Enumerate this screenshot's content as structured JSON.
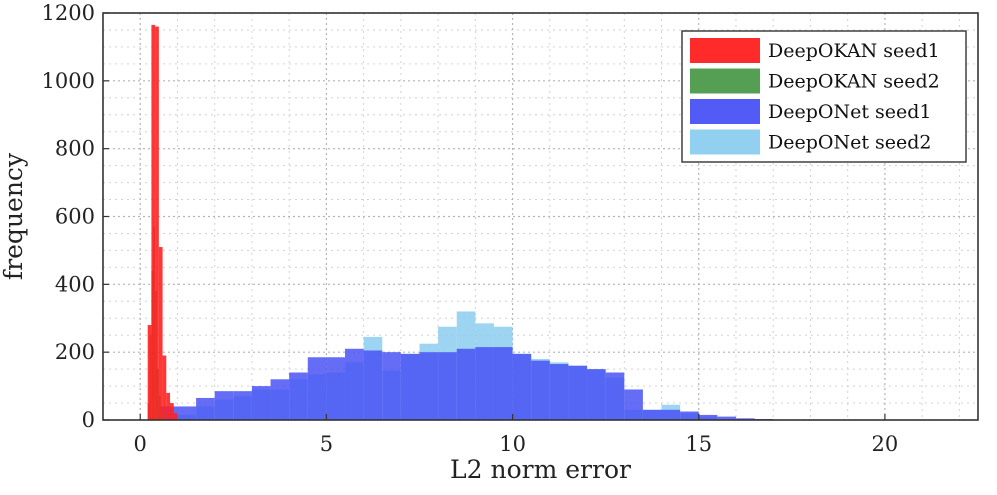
{
  "chart_data": {
    "type": "histogram",
    "xlabel": "L2 norm error",
    "ylabel": "frequency",
    "xlim": [
      -1,
      22.5
    ],
    "ylim": [
      0,
      1200
    ],
    "xticks": [
      0,
      5,
      10,
      15,
      20
    ],
    "yticks": [
      0,
      200,
      400,
      600,
      800,
      1000,
      1200
    ],
    "grid": true,
    "minor_grid": true,
    "legend_position": "top-right",
    "series": [
      {
        "name": "DeepOKAN seed1",
        "color": "#ff2020",
        "bin_edges": [
          0.2,
          0.3,
          0.4,
          0.5,
          0.6,
          0.7,
          0.8,
          0.9,
          1.0
        ],
        "counts": [
          280,
          1165,
          1160,
          510,
          190,
          80,
          50,
          20
        ]
      },
      {
        "name": "DeepOKAN seed2",
        "color": "#4c9a4c",
        "bin_edges": [
          0.2,
          0.25,
          0.3,
          0.35,
          0.4,
          0.45,
          0.5,
          0.55,
          0.6,
          0.65
        ],
        "counts": [
          50,
          250,
          440,
          570,
          380,
          150,
          70,
          30,
          10
        ]
      },
      {
        "name": "DeepONet seed1",
        "color": "#4a52f5",
        "bin_edges": [
          0.5,
          1.0,
          1.5,
          2.0,
          2.5,
          3.0,
          3.5,
          4.0,
          4.5,
          5.0,
          5.5,
          6.0,
          6.5,
          7.0,
          7.5,
          8.0,
          8.5,
          9.0,
          9.5,
          10.0,
          10.5,
          11.0,
          11.5,
          12.0,
          12.5,
          13.0,
          13.5,
          14.0,
          14.5,
          15.0,
          15.5,
          16.0,
          16.5,
          17.0
        ],
        "counts": [
          40,
          40,
          65,
          85,
          85,
          100,
          120,
          140,
          185,
          185,
          210,
          205,
          200,
          195,
          200,
          200,
          210,
          215,
          215,
          195,
          175,
          165,
          160,
          150,
          140,
          90,
          30,
          30,
          25,
          15,
          10,
          5,
          3
        ]
      },
      {
        "name": "DeepONet seed2",
        "color": "#8ccdf0",
        "bin_edges": [
          1.0,
          1.5,
          2.0,
          2.5,
          3.0,
          3.5,
          4.0,
          4.5,
          5.0,
          5.5,
          6.0,
          6.5,
          7.0,
          7.5,
          8.0,
          8.5,
          9.0,
          9.5,
          10.0,
          10.5,
          11.0,
          11.5,
          12.0,
          12.5,
          13.0,
          13.5,
          14.0,
          14.5,
          15.0,
          15.5
        ],
        "counts": [
          15,
          40,
          60,
          70,
          90,
          90,
          120,
          135,
          140,
          170,
          245,
          145,
          195,
          225,
          275,
          320,
          285,
          275,
          195,
          180,
          170,
          160,
          150,
          125,
          30,
          30,
          45,
          20,
          10
        ]
      }
    ]
  }
}
